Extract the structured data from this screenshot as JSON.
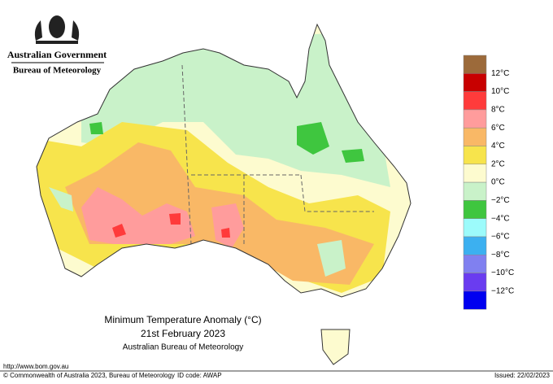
{
  "header": {
    "government": "Australian Government",
    "agency": "Bureau of Meteorology"
  },
  "legend": {
    "colors": [
      "#9c6a3a",
      "#c80000",
      "#ff3b3b",
      "#ff9c9c",
      "#f9b866",
      "#f7e44c",
      "#fdfbcf",
      "#c9f2c9",
      "#3fc63f",
      "#9cfbfb",
      "#3cb0f0",
      "#8080f0",
      "#6a3cf0",
      "#0000f0"
    ],
    "labels": [
      "12°C",
      "10°C",
      "8°C",
      "6°C",
      "4°C",
      "2°C",
      "0°C",
      "−2°C",
      "−4°C",
      "−6°C",
      "−8°C",
      "−10°C",
      "−12°C"
    ]
  },
  "title": {
    "line1": "Minimum Temperature Anomaly (°C)",
    "line2": "21st February 2023",
    "line3": "Australian Bureau of Meteorology"
  },
  "footer": {
    "url": "http://www.bom.gov.au",
    "copyright": "© Commonwealth of Australia 2023, Bureau of Meteorology",
    "id_code": "ID code: AWAP",
    "issued": "Issued: 22/02/2023"
  }
}
